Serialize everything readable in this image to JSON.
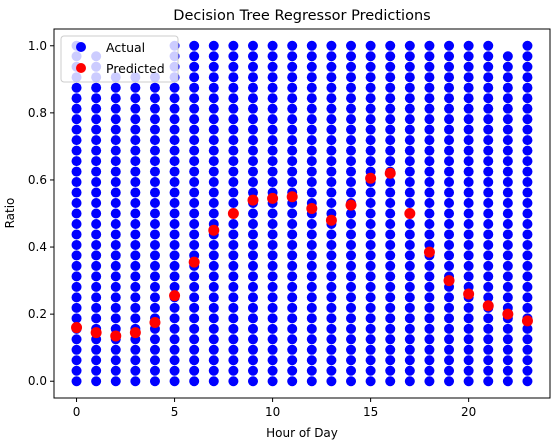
{
  "chart_data": {
    "type": "scatter",
    "title": "Decision Tree Regressor Predictions",
    "xlabel": "Hour of Day",
    "ylabel": "Ratio",
    "xlim": [
      -1.15,
      24.15
    ],
    "ylim": [
      -0.05,
      1.05
    ],
    "x_ticks": [
      0,
      5,
      10,
      15,
      20
    ],
    "y_ticks": [
      0.0,
      0.2,
      0.4,
      0.6,
      0.8,
      1.0
    ],
    "y_tick_labels": [
      "0.0",
      "0.2",
      "0.4",
      "0.6",
      "0.8",
      "1.0"
    ],
    "grid": false,
    "legend_position": "top-left",
    "series": [
      {
        "name": "Actual",
        "color": "#0000ff",
        "description_values": "dense columns of points at every integer hour 0-23 spanning ratio 0.0-1.0",
        "hours": [
          0,
          1,
          2,
          3,
          4,
          5,
          6,
          7,
          8,
          9,
          10,
          11,
          12,
          13,
          14,
          15,
          16,
          17,
          18,
          19,
          20,
          21,
          22,
          23
        ],
        "max_ratio_by_hour": [
          1.0,
          0.97,
          0.93,
          0.92,
          0.93,
          1.0,
          1.0,
          1.0,
          1.0,
          1.0,
          1.0,
          1.0,
          1.0,
          1.0,
          1.0,
          1.0,
          1.0,
          1.0,
          1.0,
          1.0,
          1.0,
          1.0,
          0.97,
          1.0
        ],
        "ratio_step": 0.03125
      },
      {
        "name": "Predicted",
        "color": "#ff0000",
        "x": [
          0,
          1,
          2,
          3,
          4,
          5,
          6,
          7,
          8,
          9,
          10,
          11,
          12,
          13,
          14,
          15,
          16,
          17,
          18,
          19,
          20,
          21,
          22,
          23
        ],
        "y": [
          0.16,
          0.145,
          0.135,
          0.145,
          0.175,
          0.255,
          0.355,
          0.45,
          0.5,
          0.54,
          0.545,
          0.55,
          0.515,
          0.48,
          0.525,
          0.605,
          0.62,
          0.5,
          0.385,
          0.3,
          0.26,
          0.225,
          0.2,
          0.18
        ]
      }
    ]
  }
}
